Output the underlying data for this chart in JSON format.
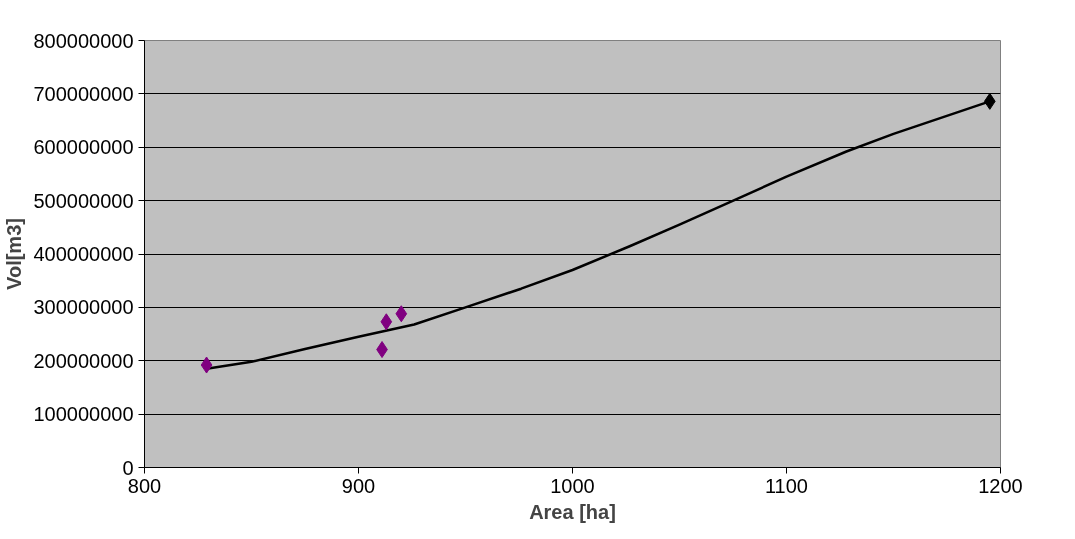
{
  "chart_data": {
    "type": "scatter",
    "xlabel": "Area [ha]",
    "ylabel": "Vol[m3]",
    "xlim": [
      800,
      1200
    ],
    "xticks": [
      800,
      900,
      1000,
      1100,
      1200
    ],
    "ylim": [
      0,
      800000000
    ],
    "yticks": [
      0,
      100000000,
      200000000,
      300000000,
      400000000,
      500000000,
      600000000,
      700000000,
      800000000
    ],
    "grid": "y",
    "marker": "diamond",
    "series": [
      {
        "color": "#800080",
        "x": [
          829,
          911,
          913,
          920
        ],
        "values": [
          192000000,
          221000000,
          273000000,
          288000000
        ]
      },
      {
        "color": "#000000",
        "x": [
          1195
        ],
        "values": [
          686000000
        ]
      },
      {
        "type": "line",
        "color": "#000000",
        "marker": "none",
        "line_style": "solid",
        "x": [
          829,
          850,
          875,
          900,
          926,
          950,
          976,
          1000,
          1027,
          1050,
          1078,
          1100,
          1128,
          1150,
          1195
        ],
        "values": [
          185000000,
          198000000,
          222000000,
          245000000,
          268000000,
          300000000,
          335000000,
          370000000,
          415000000,
          455000000,
          505000000,
          545000000,
          592000000,
          625000000,
          686000000
        ]
      }
    ]
  }
}
